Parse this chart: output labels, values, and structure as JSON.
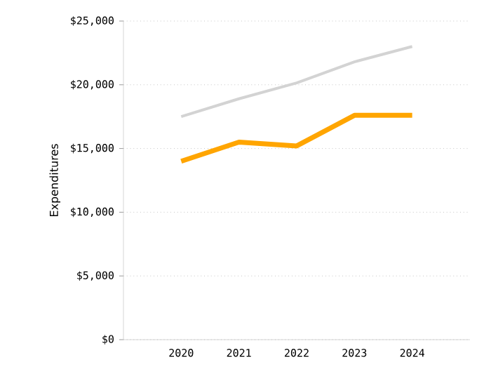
{
  "chart_data": {
    "type": "line",
    "ylabel": "Expenditures",
    "categories": [
      "2020",
      "2021",
      "2022",
      "2023",
      "2024"
    ],
    "series": [
      {
        "color": "#d3d3d3",
        "values": [
          17500,
          18900,
          20150,
          21800,
          23000
        ]
      },
      {
        "color": "#ffa500",
        "values": [
          14000,
          15500,
          15200,
          17600,
          17600
        ]
      }
    ],
    "ylim": [
      0,
      25000
    ],
    "yticks": [
      {
        "value": 0,
        "label": "$0"
      },
      {
        "value": 5000,
        "label": "$5,000"
      },
      {
        "value": 10000,
        "label": "$10,000"
      },
      {
        "value": 15000,
        "label": "$15,000"
      },
      {
        "value": 20000,
        "label": "$20,000"
      },
      {
        "value": 25000,
        "label": "$25,000"
      }
    ],
    "grid": "y",
    "marker": "none",
    "line_style": "solid"
  }
}
